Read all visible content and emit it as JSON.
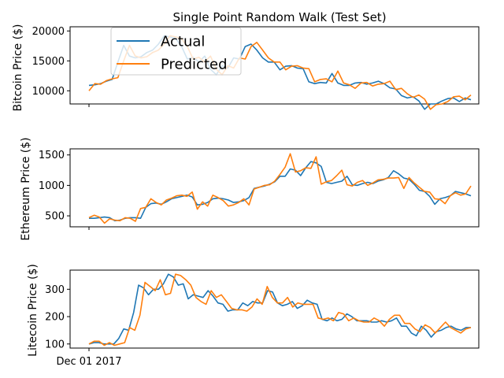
{
  "chart_data": [
    {
      "type": "line",
      "title": "Single Point Random Walk (Test Set)",
      "ylabel": "Bitcoin Price ($)",
      "ylim": [
        7800,
        20700
      ],
      "yticks": [
        10000,
        15000,
        20000
      ],
      "grid": false,
      "legend_position": "top-left",
      "series": [
        {
          "name": "Actual",
          "color": "#1f77b4",
          "values": [
            10900,
            11000,
            11200,
            11600,
            11900,
            14800,
            17600,
            15800,
            15500,
            15700,
            16400,
            16800,
            17800,
            19200,
            19000,
            18700,
            17400,
            15300,
            15600,
            14800,
            15800,
            13600,
            12700,
            14200,
            13800,
            15500,
            15300,
            17400,
            17800,
            16800,
            15500,
            14800,
            14800,
            13500,
            14100,
            14200,
            13800,
            13700,
            11500,
            11200,
            11400,
            11300,
            12900,
            11300,
            10900,
            10900,
            11300,
            11400,
            11100,
            11300,
            11600,
            11200,
            10500,
            10300,
            9200,
            8800,
            9000,
            8300,
            6900,
            7800,
            7800,
            8300,
            8700,
            8800,
            8200,
            8800,
            8500
          ]
        },
        {
          "name": "Predicted",
          "color": "#ff7f0e",
          "values": [
            10000,
            11200,
            11100,
            11700,
            12000,
            12200,
            15000,
            17600,
            15800,
            15500,
            15700,
            16400,
            16800,
            17800,
            19200,
            19000,
            18700,
            17400,
            15300,
            15600,
            14800,
            15800,
            13600,
            12700,
            14200,
            13800,
            15500,
            15300,
            17400,
            18100,
            16800,
            15500,
            14800,
            14800,
            13500,
            14100,
            14200,
            13800,
            13700,
            11500,
            11900,
            12000,
            11500,
            13300,
            11300,
            11000,
            10400,
            11300,
            11400,
            10800,
            11100,
            11200,
            11600,
            10200,
            10400,
            9500,
            8900,
            9300,
            8600,
            6900,
            7700,
            7800,
            8200,
            9000,
            9100,
            8500,
            9300
          ]
        }
      ]
    },
    {
      "type": "line",
      "ylabel": "Ethereum Price ($)",
      "ylim": [
        320,
        1600
      ],
      "yticks": [
        500,
        1000,
        1500
      ],
      "grid": false,
      "series": [
        {
          "name": "Actual",
          "color": "#1f77b4",
          "values": [
            460,
            460,
            470,
            480,
            470,
            420,
            430,
            460,
            470,
            470,
            460,
            640,
            700,
            710,
            690,
            730,
            780,
            800,
            820,
            840,
            810,
            680,
            690,
            720,
            780,
            790,
            780,
            760,
            720,
            730,
            750,
            800,
            950,
            970,
            990,
            1020,
            1060,
            1150,
            1150,
            1270,
            1250,
            1160,
            1290,
            1390,
            1370,
            1310,
            1050,
            1030,
            1050,
            1070,
            1150,
            1010,
            1000,
            1030,
            1050,
            1030,
            1070,
            1090,
            1130,
            1240,
            1190,
            1120,
            1100,
            1020,
            920,
            900,
            820,
            690,
            780,
            800,
            830,
            900,
            880,
            860,
            830
          ]
        },
        {
          "name": "Predicted",
          "color": "#ff7f0e",
          "values": [
            470,
            510,
            480,
            380,
            450,
            430,
            420,
            470,
            460,
            410,
            620,
            640,
            780,
            720,
            680,
            760,
            790,
            830,
            840,
            820,
            890,
            610,
            730,
            660,
            840,
            800,
            750,
            660,
            680,
            720,
            780,
            680,
            940,
            970,
            1000,
            1010,
            1070,
            1180,
            1300,
            1520,
            1220,
            1240,
            1290,
            1280,
            1470,
            1020,
            1060,
            1080,
            1160,
            1250,
            1010,
            990,
            1050,
            1080,
            1000,
            1040,
            1090,
            1100,
            1120,
            1120,
            1130,
            950,
            1130,
            1040,
            970,
            900,
            890,
            780,
            770,
            700,
            830,
            880,
            840,
            860,
            990
          ]
        }
      ]
    },
    {
      "type": "line",
      "ylabel": "Litecoin Price ($)",
      "ylim": [
        85,
        370
      ],
      "yticks": [
        100,
        200,
        300
      ],
      "xticks": [
        "Dec 01 2017"
      ],
      "grid": false,
      "series": [
        {
          "name": "Actual",
          "color": "#1f77b4",
          "values": [
            100,
            105,
            105,
            100,
            100,
            100,
            120,
            155,
            150,
            215,
            315,
            305,
            280,
            300,
            300,
            320,
            355,
            345,
            315,
            320,
            265,
            280,
            275,
            270,
            295,
            275,
            250,
            245,
            220,
            225,
            225,
            250,
            240,
            255,
            250,
            250,
            295,
            290,
            250,
            240,
            245,
            255,
            230,
            240,
            260,
            250,
            245,
            190,
            185,
            195,
            185,
            190,
            210,
            200,
            185,
            185,
            185,
            180,
            180,
            185,
            180,
            185,
            195,
            165,
            165,
            140,
            130,
            165,
            150,
            125,
            145,
            150,
            160,
            165,
            155,
            150,
            160,
            160
          ]
        },
        {
          "name": "Predicted",
          "color": "#ff7f0e",
          "values": [
            100,
            110,
            110,
            95,
            105,
            95,
            100,
            105,
            160,
            150,
            205,
            325,
            310,
            295,
            335,
            280,
            285,
            355,
            350,
            335,
            315,
            270,
            255,
            245,
            295,
            270,
            280,
            255,
            230,
            225,
            225,
            220,
            235,
            265,
            245,
            310,
            270,
            250,
            250,
            270,
            235,
            250,
            245,
            245,
            245,
            195,
            190,
            195,
            185,
            215,
            210,
            185,
            195,
            185,
            180,
            180,
            195,
            185,
            165,
            190,
            205,
            205,
            175,
            175,
            155,
            145,
            170,
            160,
            140,
            160,
            180,
            160,
            150,
            140,
            155,
            160
          ]
        }
      ]
    }
  ]
}
